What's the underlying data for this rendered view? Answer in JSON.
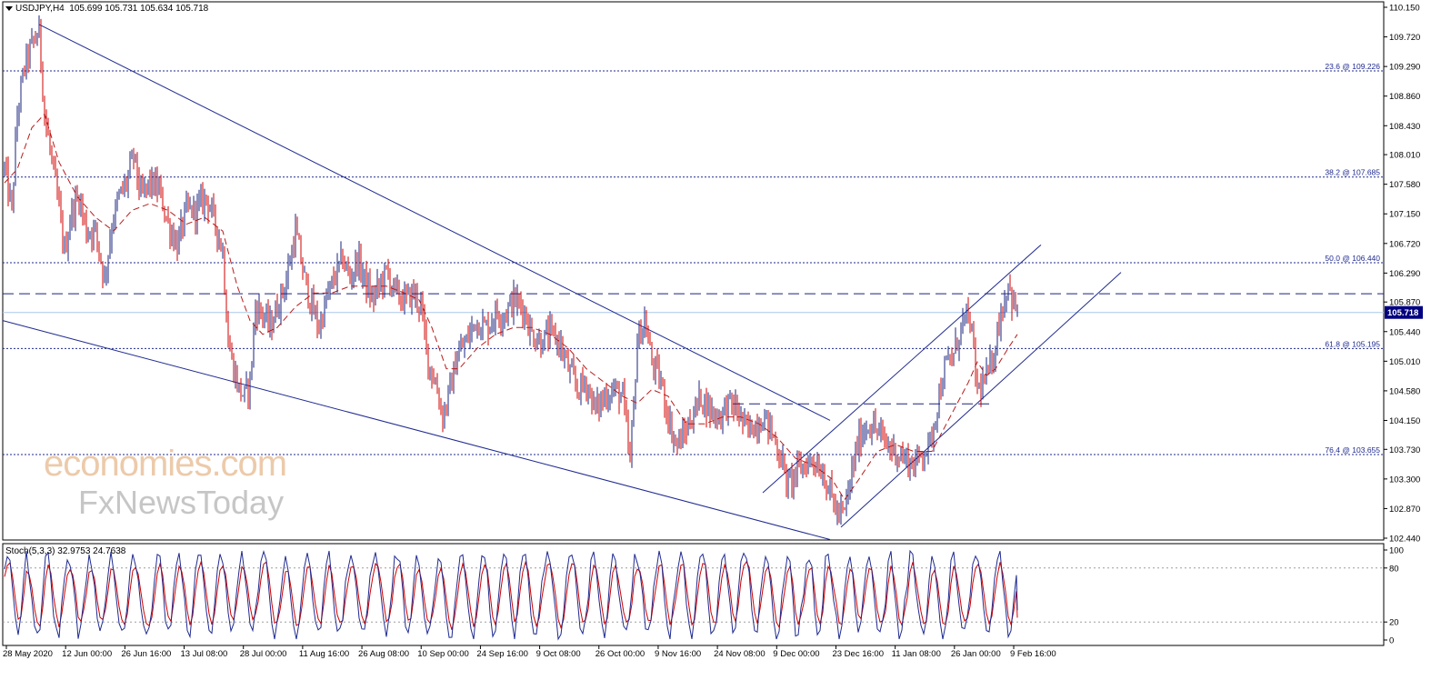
{
  "header": {
    "symbol": "USDJPY,H4",
    "ohlc": "105.699 105.731 105.634 105.718"
  },
  "watermark": {
    "line1": "economies.com",
    "line2": "FxNewsToday"
  },
  "stoch_header": "Stoch(5,3,3) 32.9753 24.7638",
  "colors": {
    "candle_up": "#1a237e",
    "candle_down": "#d00000",
    "ma": "#b71c1c",
    "trendline": "#1f2a8f",
    "fib_line": "#1f2a8f",
    "stoch_main": "#1f2a8f",
    "stoch_signal": "#d00000",
    "price_tag_bg": "#000080"
  },
  "chart_data": [
    {
      "type": "candlestick",
      "title": "USDJPY,H4",
      "ylim": [
        102.44,
        110.15
      ],
      "y_ticks": [
        "110.150",
        "109.720",
        "109.290",
        "108.860",
        "108.430",
        "108.010",
        "107.580",
        "107.150",
        "106.720",
        "106.290",
        "105.870",
        "105.440",
        "105.010",
        "104.580",
        "104.150",
        "103.730",
        "103.300",
        "102.870",
        "102.440"
      ],
      "x_ticks": [
        "28 May 2020",
        "12 Jun 00:00",
        "26 Jun 16:00",
        "13 Jul 08:00",
        "28 Jul 00:00",
        "11 Aug 16:00",
        "26 Aug 08:00",
        "10 Sep 00:00",
        "24 Sep 16:00",
        "9 Oct 08:00",
        "26 Oct 00:00",
        "9 Nov 16:00",
        "24 Nov 08:00",
        "9 Dec 00:00",
        "23 Dec 16:00",
        "11 Jan 08:00",
        "26 Jan 00:00",
        "9 Feb 16:00"
      ],
      "current_price": "105.718",
      "price_path": [
        [
          0,
          107.8
        ],
        [
          8,
          107.2
        ],
        [
          14,
          108.6
        ],
        [
          22,
          109.3
        ],
        [
          30,
          109.6
        ],
        [
          38,
          109.8
        ],
        [
          44,
          108.6
        ],
        [
          52,
          107.9
        ],
        [
          60,
          107.2
        ],
        [
          66,
          106.6
        ],
        [
          74,
          107.2
        ],
        [
          82,
          107.4
        ],
        [
          90,
          106.9
        ],
        [
          100,
          106.9
        ],
        [
          110,
          106.2
        ],
        [
          118,
          107.0
        ],
        [
          126,
          107.4
        ],
        [
          134,
          107.6
        ],
        [
          142,
          108.0
        ],
        [
          150,
          107.4
        ],
        [
          160,
          107.6
        ],
        [
          170,
          107.5
        ],
        [
          180,
          107.0
        ],
        [
          190,
          106.7
        ],
        [
          200,
          107.2
        ],
        [
          210,
          107.2
        ],
        [
          222,
          107.4
        ],
        [
          232,
          107.0
        ],
        [
          240,
          106.6
        ],
        [
          246,
          105.3
        ],
        [
          252,
          104.9
        ],
        [
          258,
          104.6
        ],
        [
          264,
          104.5
        ],
        [
          270,
          104.7
        ],
        [
          276,
          105.8
        ],
        [
          284,
          105.7
        ],
        [
          292,
          105.5
        ],
        [
          300,
          105.8
        ],
        [
          310,
          106.2
        ],
        [
          320,
          106.9
        ],
        [
          330,
          106.2
        ],
        [
          338,
          105.8
        ],
        [
          346,
          105.5
        ],
        [
          354,
          105.9
        ],
        [
          362,
          106.2
        ],
        [
          372,
          106.5
        ],
        [
          380,
          106.2
        ],
        [
          388,
          106.5
        ],
        [
          396,
          106.2
        ],
        [
          404,
          105.9
        ],
        [
          412,
          106.1
        ],
        [
          420,
          106.3
        ],
        [
          430,
          106.0
        ],
        [
          440,
          105.9
        ],
        [
          450,
          106.0
        ],
        [
          458,
          105.8
        ],
        [
          466,
          105.0
        ],
        [
          474,
          104.7
        ],
        [
          482,
          104.2
        ],
        [
          490,
          104.6
        ],
        [
          498,
          105.1
        ],
        [
          508,
          105.3
        ],
        [
          518,
          105.6
        ],
        [
          530,
          105.5
        ],
        [
          540,
          105.7
        ],
        [
          550,
          105.7
        ],
        [
          560,
          105.9
        ],
        [
          570,
          105.8
        ],
        [
          580,
          105.4
        ],
        [
          590,
          105.3
        ],
        [
          600,
          105.4
        ],
        [
          610,
          105.3
        ],
        [
          620,
          104.9
        ],
        [
          630,
          104.6
        ],
        [
          640,
          104.7
        ],
        [
          650,
          104.3
        ],
        [
          660,
          104.5
        ],
        [
          670,
          104.6
        ],
        [
          680,
          104.5
        ],
        [
          688,
          103.5
        ],
        [
          696,
          105.3
        ],
        [
          704,
          105.6
        ],
        [
          712,
          105.0
        ],
        [
          722,
          104.7
        ],
        [
          730,
          104.2
        ],
        [
          738,
          103.8
        ],
        [
          746,
          103.9
        ],
        [
          756,
          104.2
        ],
        [
          766,
          104.5
        ],
        [
          776,
          104.3
        ],
        [
          786,
          104.2
        ],
        [
          796,
          104.4
        ],
        [
          806,
          104.3
        ],
        [
          816,
          104.0
        ],
        [
          826,
          104.1
        ],
        [
          836,
          104.2
        ],
        [
          846,
          103.9
        ],
        [
          854,
          103.6
        ],
        [
          862,
          103.2
        ],
        [
          870,
          103.4
        ],
        [
          880,
          103.5
        ],
        [
          890,
          103.6
        ],
        [
          900,
          103.4
        ],
        [
          908,
          103.1
        ],
        [
          916,
          102.8
        ],
        [
          924,
          102.8
        ],
        [
          932,
          103.4
        ],
        [
          940,
          103.9
        ],
        [
          950,
          104.1
        ],
        [
          960,
          104.0
        ],
        [
          970,
          103.8
        ],
        [
          980,
          103.7
        ],
        [
          990,
          103.6
        ],
        [
          1000,
          103.5
        ],
        [
          1010,
          103.7
        ],
        [
          1018,
          103.8
        ],
        [
          1026,
          104.4
        ],
        [
          1034,
          104.9
        ],
        [
          1044,
          105.1
        ],
        [
          1054,
          105.6
        ],
        [
          1062,
          105.6
        ],
        [
          1070,
          104.6
        ],
        [
          1078,
          104.7
        ],
        [
          1086,
          105.0
        ],
        [
          1094,
          105.6
        ],
        [
          1100,
          105.9
        ],
        [
          1104,
          106.2
        ],
        [
          1108,
          105.9
        ],
        [
          1114,
          105.7
        ]
      ],
      "ma_path": [
        [
          0,
          107.6
        ],
        [
          14,
          107.8
        ],
        [
          30,
          108.4
        ],
        [
          44,
          108.6
        ],
        [
          60,
          107.9
        ],
        [
          80,
          107.4
        ],
        [
          100,
          107.1
        ],
        [
          120,
          106.9
        ],
        [
          140,
          107.2
        ],
        [
          160,
          107.3
        ],
        [
          180,
          107.2
        ],
        [
          200,
          107.0
        ],
        [
          220,
          107.1
        ],
        [
          240,
          106.9
        ],
        [
          256,
          106.1
        ],
        [
          270,
          105.6
        ],
        [
          284,
          105.4
        ],
        [
          300,
          105.5
        ],
        [
          320,
          105.8
        ],
        [
          340,
          106.0
        ],
        [
          360,
          106.0
        ],
        [
          380,
          106.1
        ],
        [
          400,
          106.1
        ],
        [
          420,
          106.1
        ],
        [
          440,
          106.0
        ],
        [
          456,
          105.9
        ],
        [
          470,
          105.5
        ],
        [
          486,
          104.9
        ],
        [
          500,
          104.9
        ],
        [
          520,
          105.2
        ],
        [
          540,
          105.4
        ],
        [
          560,
          105.5
        ],
        [
          580,
          105.5
        ],
        [
          600,
          105.4
        ],
        [
          620,
          105.2
        ],
        [
          640,
          104.9
        ],
        [
          660,
          104.7
        ],
        [
          680,
          104.5
        ],
        [
          696,
          104.4
        ],
        [
          712,
          104.6
        ],
        [
          730,
          104.5
        ],
        [
          750,
          104.1
        ],
        [
          770,
          104.1
        ],
        [
          790,
          104.2
        ],
        [
          810,
          104.2
        ],
        [
          830,
          104.1
        ],
        [
          850,
          103.9
        ],
        [
          870,
          103.6
        ],
        [
          890,
          103.5
        ],
        [
          910,
          103.3
        ],
        [
          924,
          103.0
        ],
        [
          940,
          103.3
        ],
        [
          960,
          103.7
        ],
        [
          980,
          103.8
        ],
        [
          1000,
          103.7
        ],
        [
          1020,
          103.7
        ],
        [
          1040,
          104.2
        ],
        [
          1060,
          104.7
        ],
        [
          1070,
          105.0
        ],
        [
          1080,
          104.8
        ],
        [
          1090,
          104.9
        ],
        [
          1104,
          105.2
        ],
        [
          1114,
          105.4
        ]
      ],
      "fib_levels": [
        {
          "label": "23.6 @ 109.226",
          "price": 109.226
        },
        {
          "label": "38.2 @ 107.685",
          "price": 107.685
        },
        {
          "label": "50.0 @ 106.440",
          "price": 106.44
        },
        {
          "label": "61.8 @ 105.195",
          "price": 105.195
        },
        {
          "label": "76.4 @ 103.655",
          "price": 103.655
        }
      ],
      "resistance_dashed": [
        105.99,
        104.39
      ],
      "trendlines": [
        {
          "name": "upper channel",
          "from": [
            40,
            109.9
          ],
          "to": [
            910,
            104.15
          ]
        },
        {
          "name": "lower channel",
          "from": [
            0,
            105.6
          ],
          "to": [
            910,
            102.42
          ]
        },
        {
          "name": "rising channel top",
          "from": [
            836,
            103.1
          ],
          "to": [
            1142,
            106.7
          ]
        },
        {
          "name": "rising channel bottom",
          "from": [
            922,
            102.6
          ],
          "to": [
            1230,
            106.3
          ]
        }
      ]
    },
    {
      "type": "line",
      "title": "Stoch(5,3,3) 32.9753 24.7638",
      "ylim": [
        0,
        100
      ],
      "y_ticks": [
        "100",
        "80",
        "20",
        "0"
      ],
      "levels": [
        80,
        20
      ],
      "main_last": 32.9753,
      "signal_last": 24.7638
    }
  ]
}
